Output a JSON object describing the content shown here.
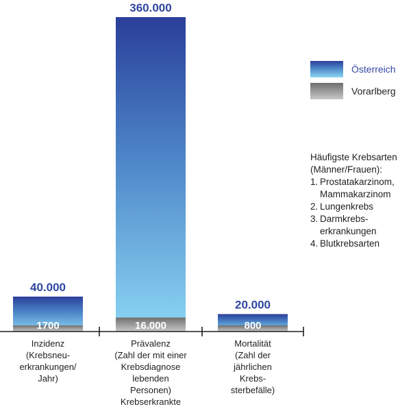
{
  "chart_data": {
    "type": "bar",
    "categories": [
      "Inzidenz\n(Krebsneu-\nerkrankungen/\nJahr)",
      "Prävalenz\n(Zahl der mit einer\nKrebsdiagnose\nlebenden\nPersonen)\nKrebserkrankte",
      "Mortalität\n(Zahl der\njährlichen\nKrebs-\nsterbefälle)"
    ],
    "series": [
      {
        "name": "Österreich",
        "values": [
          40000,
          360000,
          20000
        ],
        "labels": [
          "40.000",
          "360.000",
          "20.000"
        ],
        "color": "#2f46a0"
      },
      {
        "name": "Vorarlberg",
        "values": [
          1700,
          16000,
          800
        ],
        "labels": [
          "1700",
          "16.000",
          "800"
        ],
        "color": "#9a9a9a"
      }
    ],
    "ylim": [
      0,
      360000
    ],
    "grid": false,
    "legend_position": "right"
  },
  "legend": {
    "austria_label": "Österreich",
    "vorarlberg_label": "Vorarlberg"
  },
  "info": {
    "title_line1": "Häufigste Krebsarten",
    "title_line2": "(Männer/Frauen):",
    "items": [
      {
        "num": "1.",
        "line1": "Prostatakarzinom,",
        "line2": "Mammakarzinom"
      },
      {
        "num": "2.",
        "line1": "Lungenkrebs",
        "line2": ""
      },
      {
        "num": "3.",
        "line1": "Darmkrebs-",
        "line2": "erkrankungen"
      },
      {
        "num": "4.",
        "line1": "Blutkrebsarten",
        "line2": ""
      }
    ]
  },
  "colors": {
    "austria_top": "#2a3f9a",
    "austria_mid": "#4d86c8",
    "austria_bottom": "#8cd6f4",
    "vorarlberg_top": "#6f6f6f",
    "vorarlberg_bottom": "#c8c8c8",
    "value_label": "#2f46a0",
    "axis": "#1f1f1f"
  }
}
